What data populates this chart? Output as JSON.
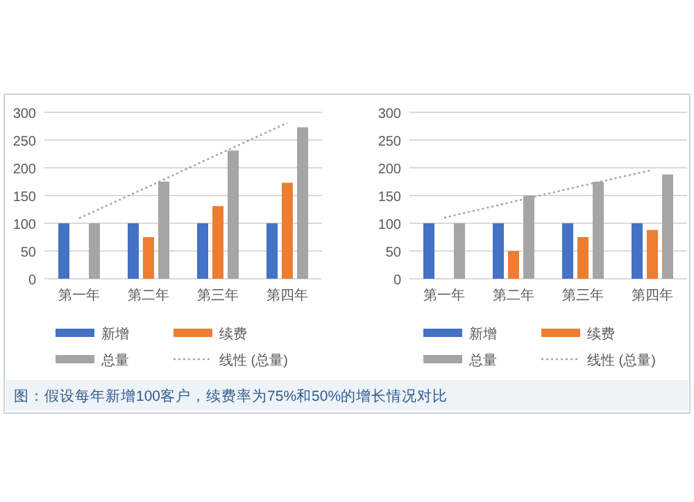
{
  "chart_data": [
    {
      "type": "bar",
      "categories": [
        "第一年",
        "第二年",
        "第三年",
        "第四年"
      ],
      "ylim": [
        0,
        300
      ],
      "yticks": [
        0,
        50,
        100,
        150,
        200,
        250,
        300
      ],
      "grid": "y",
      "legend": "bottom",
      "series": [
        {
          "name": "新增",
          "color": "#4472c4",
          "values": [
            100,
            100,
            100,
            100
          ]
        },
        {
          "name": "续费",
          "color": "#ed7d31",
          "values": [
            0,
            75,
            131,
            173
          ]
        },
        {
          "name": "总量",
          "color": "#a5a5a5",
          "values": [
            100,
            175,
            231,
            273
          ]
        },
        {
          "name": "线性 (总量)",
          "type": "line",
          "line_style": "dotted",
          "marker": "none",
          "color": "#a5a5a5",
          "values": [
            109,
            166,
            224,
            281
          ]
        }
      ],
      "annotations": [
        "图：假设每年新增100客户，续费率为75%和50%的增长情况对比"
      ]
    },
    {
      "type": "bar",
      "categories": [
        "第一年",
        "第二年",
        "第三年",
        "第四年"
      ],
      "ylim": [
        0,
        300
      ],
      "yticks": [
        0,
        50,
        100,
        150,
        200,
        250,
        300
      ],
      "grid": "y",
      "legend": "bottom",
      "series": [
        {
          "name": "新增",
          "color": "#4472c4",
          "values": [
            100,
            100,
            100,
            100
          ]
        },
        {
          "name": "续费",
          "color": "#ed7d31",
          "values": [
            0,
            50,
            75,
            88
          ]
        },
        {
          "name": "总量",
          "color": "#a5a5a5",
          "values": [
            100,
            150,
            175,
            188
          ]
        },
        {
          "name": "线性 (总量)",
          "type": "line",
          "line_style": "dotted",
          "marker": "none",
          "color": "#a5a5a5",
          "values": [
            110,
            139,
            168,
            196
          ]
        }
      ]
    }
  ]
}
